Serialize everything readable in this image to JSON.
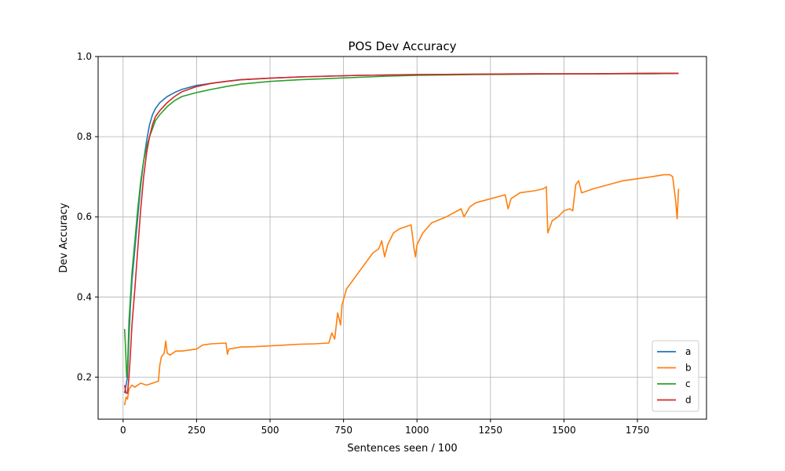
{
  "chart_data": {
    "type": "line",
    "title": "POS Dev Accuracy",
    "xlabel": "Sentences seen / 100",
    "ylabel": "Dev Accuracy",
    "xlim": [
      -85,
      1985
    ],
    "ylim": [
      0.095,
      1.0
    ],
    "xticks": [
      0,
      250,
      500,
      750,
      1000,
      1250,
      1500,
      1750
    ],
    "yticks": [
      0.2,
      0.4,
      0.6,
      0.8,
      1.0
    ],
    "grid": true,
    "legend_position": "lower right",
    "series": [
      {
        "name": "a",
        "color": "#1f77b4",
        "points": [
          [
            5,
            0.16
          ],
          [
            10,
            0.18
          ],
          [
            15,
            0.2
          ],
          [
            20,
            0.3
          ],
          [
            25,
            0.38
          ],
          [
            30,
            0.44
          ],
          [
            40,
            0.52
          ],
          [
            50,
            0.6
          ],
          [
            60,
            0.68
          ],
          [
            70,
            0.74
          ],
          [
            80,
            0.79
          ],
          [
            90,
            0.83
          ],
          [
            100,
            0.855
          ],
          [
            110,
            0.87
          ],
          [
            125,
            0.885
          ],
          [
            150,
            0.9
          ],
          [
            175,
            0.91
          ],
          [
            200,
            0.918
          ],
          [
            250,
            0.928
          ],
          [
            300,
            0.933
          ],
          [
            350,
            0.938
          ],
          [
            400,
            0.942
          ],
          [
            500,
            0.946
          ],
          [
            600,
            0.949
          ],
          [
            700,
            0.951
          ],
          [
            800,
            0.953
          ],
          [
            900,
            0.954
          ],
          [
            1000,
            0.955
          ],
          [
            1200,
            0.956
          ],
          [
            1400,
            0.957
          ],
          [
            1600,
            0.957
          ],
          [
            1800,
            0.958
          ],
          [
            1890,
            0.958
          ]
        ]
      },
      {
        "name": "b",
        "color": "#ff7f0e",
        "points": [
          [
            5,
            0.13
          ],
          [
            10,
            0.15
          ],
          [
            15,
            0.145
          ],
          [
            20,
            0.17
          ],
          [
            30,
            0.18
          ],
          [
            40,
            0.175
          ],
          [
            50,
            0.18
          ],
          [
            60,
            0.185
          ],
          [
            80,
            0.18
          ],
          [
            100,
            0.185
          ],
          [
            120,
            0.19
          ],
          [
            125,
            0.23
          ],
          [
            130,
            0.25
          ],
          [
            140,
            0.26
          ],
          [
            145,
            0.29
          ],
          [
            150,
            0.26
          ],
          [
            160,
            0.255
          ],
          [
            180,
            0.265
          ],
          [
            200,
            0.265
          ],
          [
            250,
            0.27
          ],
          [
            270,
            0.28
          ],
          [
            300,
            0.283
          ],
          [
            350,
            0.285
          ],
          [
            355,
            0.257
          ],
          [
            360,
            0.27
          ],
          [
            400,
            0.275
          ],
          [
            450,
            0.276
          ],
          [
            500,
            0.278
          ],
          [
            550,
            0.28
          ],
          [
            600,
            0.282
          ],
          [
            650,
            0.283
          ],
          [
            700,
            0.285
          ],
          [
            710,
            0.31
          ],
          [
            720,
            0.295
          ],
          [
            730,
            0.36
          ],
          [
            740,
            0.33
          ],
          [
            745,
            0.38
          ],
          [
            760,
            0.42
          ],
          [
            780,
            0.44
          ],
          [
            800,
            0.46
          ],
          [
            820,
            0.48
          ],
          [
            850,
            0.51
          ],
          [
            870,
            0.52
          ],
          [
            880,
            0.54
          ],
          [
            890,
            0.5
          ],
          [
            900,
            0.53
          ],
          [
            920,
            0.56
          ],
          [
            940,
            0.57
          ],
          [
            960,
            0.575
          ],
          [
            980,
            0.58
          ],
          [
            990,
            0.52
          ],
          [
            995,
            0.5
          ],
          [
            1000,
            0.53
          ],
          [
            1020,
            0.56
          ],
          [
            1050,
            0.585
          ],
          [
            1100,
            0.6
          ],
          [
            1150,
            0.62
          ],
          [
            1160,
            0.6
          ],
          [
            1180,
            0.625
          ],
          [
            1200,
            0.635
          ],
          [
            1250,
            0.645
          ],
          [
            1300,
            0.655
          ],
          [
            1310,
            0.62
          ],
          [
            1320,
            0.645
          ],
          [
            1350,
            0.66
          ],
          [
            1400,
            0.665
          ],
          [
            1430,
            0.67
          ],
          [
            1440,
            0.675
          ],
          [
            1445,
            0.56
          ],
          [
            1460,
            0.59
          ],
          [
            1480,
            0.6
          ],
          [
            1500,
            0.615
          ],
          [
            1520,
            0.62
          ],
          [
            1530,
            0.615
          ],
          [
            1540,
            0.68
          ],
          [
            1550,
            0.69
          ],
          [
            1560,
            0.66
          ],
          [
            1600,
            0.67
          ],
          [
            1650,
            0.68
          ],
          [
            1700,
            0.69
          ],
          [
            1750,
            0.695
          ],
          [
            1800,
            0.7
          ],
          [
            1840,
            0.705
          ],
          [
            1860,
            0.705
          ],
          [
            1870,
            0.7
          ],
          [
            1880,
            0.64
          ],
          [
            1885,
            0.595
          ],
          [
            1890,
            0.67
          ]
        ]
      },
      {
        "name": "c",
        "color": "#2ca02c",
        "points": [
          [
            5,
            0.32
          ],
          [
            8,
            0.28
          ],
          [
            12,
            0.2
          ],
          [
            15,
            0.22
          ],
          [
            20,
            0.34
          ],
          [
            25,
            0.4
          ],
          [
            30,
            0.46
          ],
          [
            40,
            0.54
          ],
          [
            50,
            0.62
          ],
          [
            60,
            0.69
          ],
          [
            70,
            0.74
          ],
          [
            80,
            0.775
          ],
          [
            90,
            0.8
          ],
          [
            100,
            0.82
          ],
          [
            110,
            0.84
          ],
          [
            125,
            0.855
          ],
          [
            150,
            0.875
          ],
          [
            175,
            0.89
          ],
          [
            200,
            0.9
          ],
          [
            250,
            0.91
          ],
          [
            300,
            0.918
          ],
          [
            350,
            0.925
          ],
          [
            400,
            0.931
          ],
          [
            500,
            0.938
          ],
          [
            600,
            0.942
          ],
          [
            700,
            0.945
          ],
          [
            800,
            0.948
          ],
          [
            900,
            0.951
          ],
          [
            1000,
            0.953
          ],
          [
            1200,
            0.955
          ],
          [
            1400,
            0.956
          ],
          [
            1600,
            0.957
          ],
          [
            1800,
            0.957
          ],
          [
            1890,
            0.958
          ]
        ]
      },
      {
        "name": "d",
        "color": "#d62728",
        "points": [
          [
            5,
            0.18
          ],
          [
            10,
            0.16
          ],
          [
            15,
            0.16
          ],
          [
            20,
            0.2
          ],
          [
            25,
            0.26
          ],
          [
            30,
            0.33
          ],
          [
            40,
            0.42
          ],
          [
            50,
            0.52
          ],
          [
            60,
            0.62
          ],
          [
            70,
            0.7
          ],
          [
            80,
            0.76
          ],
          [
            90,
            0.8
          ],
          [
            100,
            0.83
          ],
          [
            110,
            0.85
          ],
          [
            125,
            0.865
          ],
          [
            150,
            0.885
          ],
          [
            175,
            0.9
          ],
          [
            200,
            0.912
          ],
          [
            250,
            0.925
          ],
          [
            300,
            0.933
          ],
          [
            350,
            0.938
          ],
          [
            400,
            0.942
          ],
          [
            500,
            0.946
          ],
          [
            600,
            0.949
          ],
          [
            700,
            0.951
          ],
          [
            800,
            0.953
          ],
          [
            900,
            0.954
          ],
          [
            1000,
            0.955
          ],
          [
            1200,
            0.956
          ],
          [
            1400,
            0.957
          ],
          [
            1600,
            0.957
          ],
          [
            1800,
            0.958
          ],
          [
            1890,
            0.958
          ]
        ]
      }
    ]
  }
}
